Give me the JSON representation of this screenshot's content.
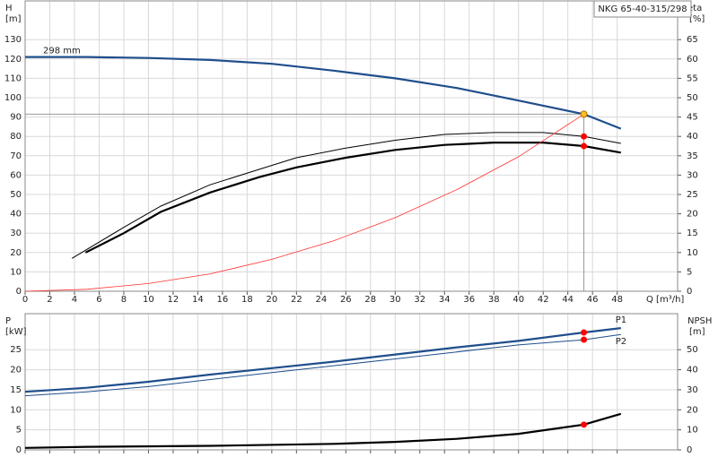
{
  "chart_data": [
    {
      "type": "line",
      "title": "NKG 65-40-315/298",
      "annotation": "298 mm",
      "x_label": "Q [m³/h]",
      "y_label": "H",
      "y_unit": "[m]",
      "y2_label": "eta",
      "y2_unit": "[%]",
      "xlim": [
        0,
        52.9
      ],
      "ylim": [
        0,
        150
      ],
      "y2lim": [
        0,
        75
      ],
      "grid": true,
      "xticks": [
        0,
        2,
        4,
        6,
        8,
        10,
        12,
        14,
        16,
        18,
        20,
        22,
        24,
        26,
        28,
        30,
        32,
        34,
        36,
        38,
        40,
        42,
        44,
        46,
        48
      ],
      "yticks": [
        0,
        10,
        20,
        30,
        40,
        50,
        60,
        70,
        80,
        90,
        100,
        110,
        120,
        130
      ],
      "y2ticks": [
        0,
        5,
        10,
        15,
        20,
        25,
        30,
        35,
        40,
        45,
        50,
        55,
        60,
        65
      ],
      "series": [
        {
          "color": "#1f4e8c",
          "width": 2.2,
          "axis": "y",
          "x": [
            0,
            5,
            10,
            15,
            20,
            25,
            30,
            35,
            40,
            45.3,
            48.3
          ],
          "values": [
            121,
            121,
            120.5,
            119.5,
            117.5,
            114,
            110,
            105,
            98.5,
            91.5,
            84
          ]
        },
        {
          "color": "#000000",
          "width": 1,
          "axis": "y2",
          "x": [
            3.8,
            8,
            11,
            15,
            19,
            22,
            26,
            30,
            34,
            38,
            42,
            45.3,
            48.3
          ],
          "values": [
            8.5,
            16.5,
            22,
            27.5,
            31.5,
            34.5,
            37,
            39,
            40.5,
            41,
            41,
            40,
            38.2
          ]
        },
        {
          "color": "#000000",
          "width": 2.2,
          "axis": "y2",
          "x": [
            4.9,
            8,
            11,
            15,
            19,
            22,
            26,
            30,
            34,
            38,
            42,
            45.3,
            48.3
          ],
          "values": [
            10,
            15,
            20.5,
            25.5,
            29.5,
            32,
            34.5,
            36.5,
            37.8,
            38.4,
            38.4,
            37.5,
            35.8
          ]
        },
        {
          "color": "#ff3030",
          "width": 0.8,
          "axis": "y",
          "x": [
            0,
            5,
            10,
            15,
            20,
            25,
            30,
            35,
            40,
            45.3
          ],
          "values": [
            0,
            1,
            4,
            9,
            16.5,
            26,
            38,
            52.5,
            69.5,
            91.5
          ]
        }
      ],
      "markers": [
        {
          "x": 45.3,
          "y": 91.5,
          "axis": "y",
          "color": "#ffc020"
        },
        {
          "x": 45.3,
          "y": 40,
          "axis": "y2",
          "color": "#ff0000"
        },
        {
          "x": 45.3,
          "y": 37.5,
          "axis": "y2",
          "color": "#ff0000"
        }
      ]
    },
    {
      "type": "line",
      "y_label": "P",
      "y_unit": "[kW]",
      "y2_label": "NPSH",
      "y2_unit": "[m]",
      "xlim": [
        0,
        52.9
      ],
      "ylim": [
        0,
        34
      ],
      "y2lim": [
        0,
        68
      ],
      "grid": true,
      "xticks": [
        0,
        2,
        4,
        6,
        8,
        10,
        12,
        14,
        16,
        18,
        20,
        22,
        24,
        26,
        28,
        30,
        32,
        34,
        36,
        38,
        40,
        42,
        44,
        46,
        48
      ],
      "yticks": [
        0,
        5,
        10,
        15,
        20,
        25
      ],
      "y2ticks": [
        0,
        10,
        20,
        30,
        40,
        50
      ],
      "series": [
        {
          "name": "P1",
          "color": "#1f4e8c",
          "width": 2.2,
          "axis": "y",
          "x": [
            0,
            5,
            10,
            15,
            20,
            25,
            30,
            35,
            40,
            45.3,
            48.3
          ],
          "values": [
            14.5,
            15.5,
            17,
            18.8,
            20.4,
            22,
            23.8,
            25.6,
            27.2,
            29.3,
            30.4
          ]
        },
        {
          "name": "P2",
          "color": "#1f4e8c",
          "width": 1,
          "axis": "y",
          "x": [
            0,
            5,
            10,
            20,
            30,
            40,
            45.3,
            48.3
          ],
          "values": [
            13.5,
            14.5,
            15.8,
            19.3,
            22.7,
            26.2,
            27.5,
            28.8
          ]
        },
        {
          "color": "#000000",
          "width": 2.2,
          "axis": "y2",
          "x": [
            0,
            5,
            15,
            25,
            30,
            35,
            40,
            45.3,
            48.3
          ],
          "values": [
            1,
            1.5,
            2,
            3,
            4,
            5.5,
            8,
            12.6,
            18
          ]
        }
      ],
      "markers": [
        {
          "x": 45.3,
          "y": 29.3,
          "axis": "y",
          "color": "#ff0000"
        },
        {
          "x": 45.3,
          "y": 27.5,
          "axis": "y",
          "color": "#ff0000"
        },
        {
          "x": 45.3,
          "y": 12.6,
          "axis": "y2",
          "color": "#ff0000"
        }
      ]
    }
  ]
}
